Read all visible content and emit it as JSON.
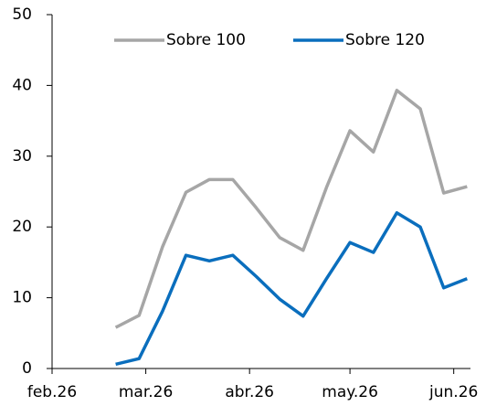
{
  "chart_data": {
    "type": "line",
    "x": [
      19,
      26,
      33,
      40,
      47,
      54,
      61,
      68,
      75,
      82,
      89,
      96,
      103,
      110,
      117,
      124
    ],
    "series": [
      {
        "name": "Sobre 100",
        "color": "#a6a6a6",
        "values": [
          5.8,
          7.5,
          17.2,
          24.9,
          26.7,
          26.7,
          22.7,
          18.5,
          16.7,
          25.6,
          33.6,
          30.6,
          39.3,
          36.7,
          24.8,
          25.7
        ]
      },
      {
        "name": "Sobre 120",
        "color": "#0a6ebd",
        "values": [
          0.6,
          1.4,
          8.1,
          16.0,
          15.2,
          16.0,
          13.0,
          9.8,
          7.4,
          12.7,
          17.8,
          16.4,
          22.0,
          20.0,
          11.4,
          12.7
        ]
      }
    ],
    "xlim": [
      0,
      125
    ],
    "xticks": [
      {
        "value": 0,
        "label": "feb.26"
      },
      {
        "value": 28,
        "label": "mar.26"
      },
      {
        "value": 59,
        "label": "abr.26"
      },
      {
        "value": 89,
        "label": "may.26"
      },
      {
        "value": 120,
        "label": "jun.26"
      }
    ],
    "ylim": [
      0,
      50
    ],
    "yticks": [
      0,
      10,
      20,
      30,
      40,
      50
    ],
    "legend": "top"
  }
}
